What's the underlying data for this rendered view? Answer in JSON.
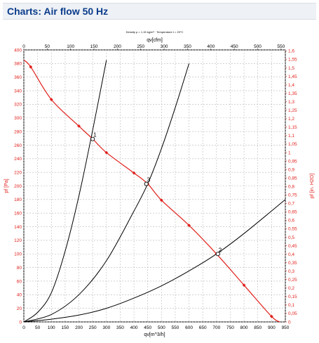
{
  "page": {
    "title": "Charts: Air flow 50 Hz"
  },
  "chart_data": {
    "type": "line",
    "title": "",
    "subtitle": "Density ρ = 1.15 kg/m³ · Temperature t = 20°C",
    "xlabel_bottom": "qv[m^3/h]",
    "xlabel_top": "qv[cfm]",
    "ylabel_left": "pf [Pa]",
    "ylabel_right": "pf [in. H2O]",
    "x_bottom": {
      "min": 0,
      "max": 950,
      "ticks": [
        0,
        50,
        100,
        150,
        200,
        250,
        300,
        350,
        400,
        450,
        500,
        550,
        600,
        650,
        700,
        750,
        800,
        850,
        900,
        950
      ]
    },
    "x_top": {
      "min": 0,
      "max": 559.2,
      "ticks": [
        0,
        50,
        100,
        150,
        200,
        250,
        300,
        350,
        400,
        450,
        500,
        550
      ]
    },
    "y_left": {
      "min": 0,
      "max": 400,
      "ticks": [
        0,
        20,
        40,
        60,
        80,
        100,
        120,
        140,
        160,
        180,
        200,
        220,
        240,
        260,
        280,
        300,
        320,
        340,
        360,
        380,
        400
      ]
    },
    "y_right": {
      "min": 0,
      "max": 1.6058,
      "ticks": [
        "0",
        "0,05",
        "0,1",
        "0,15",
        "0,2",
        "0,25",
        "0,3",
        "0,35",
        "0,4",
        "0,45",
        "0,5",
        "0,55",
        "0,6",
        "0,65",
        "0,7",
        "0,75",
        "0,8",
        "0,85",
        "0,9",
        "0,95",
        "1",
        "1,05",
        "1,1",
        "1,15",
        "1,2",
        "1,25",
        "1,3",
        "1,35",
        "1,4",
        "1,45",
        "1,5",
        "1,55",
        "1,6"
      ]
    },
    "grid": true,
    "fan_curve": {
      "color": "#e0201b",
      "x": [
        0,
        25,
        100,
        200,
        250,
        300,
        400,
        450,
        500,
        600,
        700,
        800,
        900,
        930
      ],
      "y": [
        385,
        375,
        327,
        288,
        269,
        249,
        219,
        203,
        179,
        142,
        100,
        54,
        8,
        0
      ]
    },
    "system_curves": [
      {
        "name": "1",
        "color": "#000000",
        "x": [
          0,
          50,
          100,
          150,
          200,
          250,
          300
        ],
        "y": [
          0,
          14,
          43,
          104,
          185,
          282,
          385
        ]
      },
      {
        "name": "3",
        "color": "#000000",
        "x": [
          0,
          100,
          200,
          300,
          400,
          450,
          500,
          550,
          600
        ],
        "y": [
          0,
          11,
          40,
          90,
          163,
          203,
          255,
          315,
          380
        ]
      },
      {
        "name": "2",
        "color": "#000000",
        "x": [
          0,
          100,
          200,
          300,
          400,
          500,
          600,
          700,
          800,
          950
        ],
        "y": [
          0,
          4,
          10,
          20,
          35,
          53,
          75,
          100,
          130,
          180
        ]
      }
    ],
    "operating_points": [
      {
        "label": "1",
        "x": 250,
        "y": 269
      },
      {
        "label": "3",
        "x": 445,
        "y": 203
      },
      {
        "label": "2",
        "x": 705,
        "y": 100
      }
    ]
  },
  "colors": {
    "title": "#0b3c8c",
    "title_bar": "#eef1f5",
    "grid": "#b8b8b8",
    "axis": "#000000",
    "right_axis": "#e0201b"
  }
}
